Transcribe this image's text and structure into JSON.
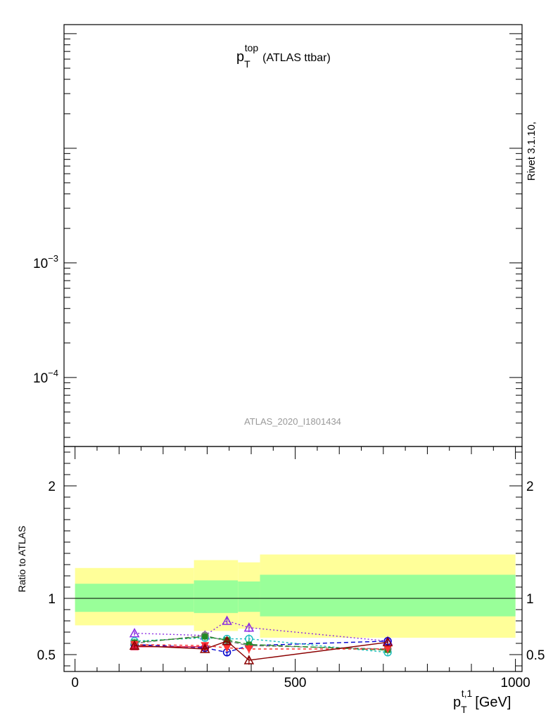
{
  "chart_data": [
    {
      "type": "line",
      "panel": "main",
      "title": "(ATLAS ttbar)",
      "title_symbol": "p",
      "title_sup": "top",
      "title_sub": "T",
      "yscale": "log",
      "y_ticks": [
        {
          "value": 0.001,
          "base": "10",
          "exp": "−3"
        },
        {
          "value": 0.0001,
          "base": "10",
          "exp": "−4"
        }
      ],
      "ylim": [
        2.5e-05,
        0.12
      ],
      "xlim": [
        -25,
        1015
      ],
      "watermark": "ATLAS_2020_I1801434",
      "side_label": "Rivet 3.1.10,"
    },
    {
      "type": "line",
      "panel": "ratio",
      "ylabel": "Ratio to ATLAS",
      "xlabel_symbol": "p",
      "xlabel_sup": "t,1",
      "xlabel_sub": "T",
      "xlabel_unit": "[GeV]",
      "xlim": [
        -25,
        1015
      ],
      "ylim": [
        0.35,
        2.35
      ],
      "x_ticks": [
        "0",
        "500",
        "1000"
      ],
      "y_ticks": [
        "0.5",
        "1",
        "2"
      ],
      "reference_line": 1,
      "bins": [
        0,
        270,
        370,
        420,
        1000
      ],
      "band_inner": [
        {
          "lo": 0.88,
          "hi": 1.13
        },
        {
          "lo": 0.87,
          "hi": 1.16
        },
        {
          "lo": 0.88,
          "hi": 1.15
        },
        {
          "lo": 0.84,
          "hi": 1.21
        }
      ],
      "band_outer": [
        {
          "lo": 0.76,
          "hi": 1.27
        },
        {
          "lo": 0.71,
          "hi": 1.34
        },
        {
          "lo": 0.73,
          "hi": 1.32
        },
        {
          "lo": 0.65,
          "hi": 1.39
        }
      ],
      "colors": {
        "inner": "#99ff99",
        "outer": "#ffff99"
      },
      "series": [
        {
          "color": "#8a2be2",
          "dash": "2,3",
          "marker": "triangle-open",
          "x": [
            135,
            295,
            345,
            395,
            710
          ],
          "y": [
            0.69,
            0.67,
            0.8,
            0.74,
            0.62
          ],
          "err": [
            0.02,
            0.03,
            0.03,
            0.04,
            0.03
          ]
        },
        {
          "color": "#0000cc",
          "dash": "6,4",
          "marker": "circle-open",
          "x": [
            135,
            295,
            345,
            395,
            710
          ],
          "y": [
            0.59,
            0.56,
            0.52,
            0.58,
            0.62
          ],
          "err": [
            0.02,
            0.03,
            0.03,
            0.04,
            0.03
          ]
        },
        {
          "color": "#20c0c0",
          "dash": "3,3",
          "marker": "circle-open",
          "x": [
            135,
            295,
            345,
            395,
            710
          ],
          "y": [
            0.62,
            0.65,
            0.64,
            0.64,
            0.52
          ],
          "err": [
            0.02,
            0.03,
            0.03,
            0.04,
            0.03
          ]
        },
        {
          "color": "#808080",
          "dash": "6,3",
          "marker": "circle-filled",
          "x": [
            135,
            295,
            345,
            395,
            710
          ],
          "y": [
            0.6,
            0.67,
            0.62,
            0.58,
            0.55
          ],
          "err": [
            0.02,
            0.03,
            0.03,
            0.04,
            0.03
          ]
        },
        {
          "color": "#228b22",
          "dash": "8,4",
          "marker": "square-filled",
          "x": [
            135,
            295,
            345,
            395,
            710
          ],
          "y": [
            0.61,
            0.66,
            0.63,
            0.59,
            0.54
          ],
          "err": [
            0.02,
            0.03,
            0.03,
            0.04,
            0.03
          ]
        },
        {
          "color": "#ff3333",
          "dash": "4,4",
          "marker": "triangle-down-filled",
          "x": [
            135,
            295,
            345,
            395,
            710
          ],
          "y": [
            0.59,
            0.58,
            0.56,
            0.55,
            0.55
          ],
          "err": [
            0.02,
            0.03,
            0.03,
            0.04,
            0.03
          ]
        },
        {
          "color": "#dc143c",
          "dash": "",
          "marker": "triangle-up-filled",
          "x": [
            135,
            295
          ],
          "y": [
            0.57,
            0.57
          ],
          "err": [
            0.02,
            0.03
          ]
        },
        {
          "color": "#8b0000",
          "dash": "",
          "marker": "triangle-open",
          "x": [
            135,
            295,
            345,
            395,
            710
          ],
          "y": [
            0.58,
            0.55,
            0.62,
            0.45,
            0.61
          ],
          "err": [
            0.02,
            0.03,
            0.03,
            0.04,
            0.03
          ]
        }
      ]
    }
  ]
}
